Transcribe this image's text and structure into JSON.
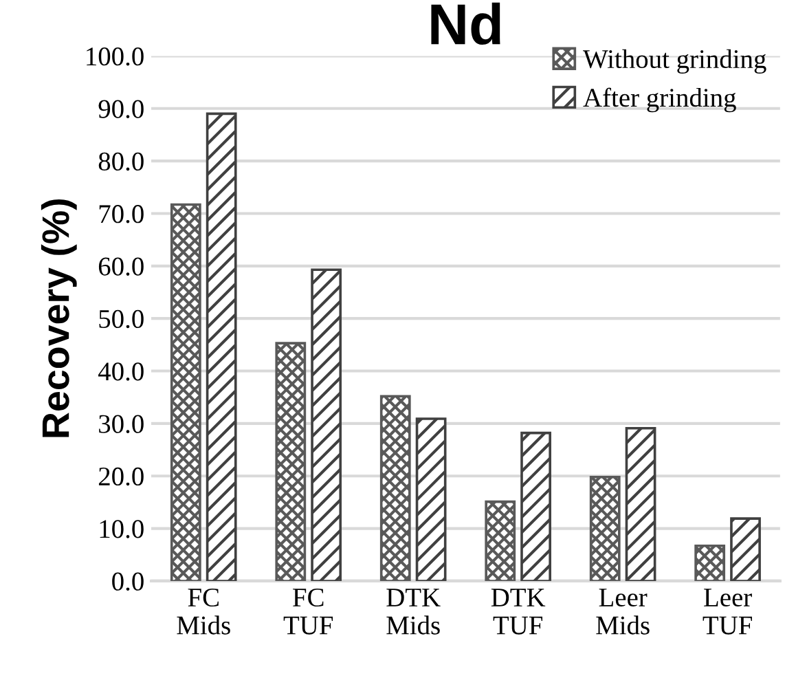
{
  "chart_data": {
    "type": "bar",
    "title": "Nd",
    "ylabel": "Recovery (%)",
    "categories": [
      "FC\nMids",
      "FC\nTUF",
      "DTK\nMids",
      "DTK\nTUF",
      "Leer\nMids",
      "Leer\nTUF"
    ],
    "series": [
      {
        "name": "Without grinding",
        "color": "#595959",
        "values": [
          71.7,
          45.3,
          35.2,
          15.1,
          19.8,
          6.7
        ]
      },
      {
        "name": "After grinding",
        "color": "#404040",
        "values": [
          89.0,
          59.3,
          30.9,
          28.2,
          29.1,
          11.9
        ]
      }
    ],
    "ylim": [
      0,
      100
    ],
    "yticks": [
      {
        "value": 0,
        "label": "0.0"
      },
      {
        "value": 10,
        "label": "10.0"
      },
      {
        "value": 20,
        "label": "20.0"
      },
      {
        "value": 30,
        "label": "30.0"
      },
      {
        "value": 40,
        "label": "40.0"
      },
      {
        "value": 50,
        "label": "50.0"
      },
      {
        "value": 60,
        "label": "60.0"
      },
      {
        "value": 70,
        "label": "70.0"
      },
      {
        "value": 80,
        "label": "80.0"
      },
      {
        "value": 90,
        "label": "90.0"
      },
      {
        "value": 100,
        "label": "100.0"
      }
    ],
    "grid": "y",
    "legend": "top right"
  }
}
